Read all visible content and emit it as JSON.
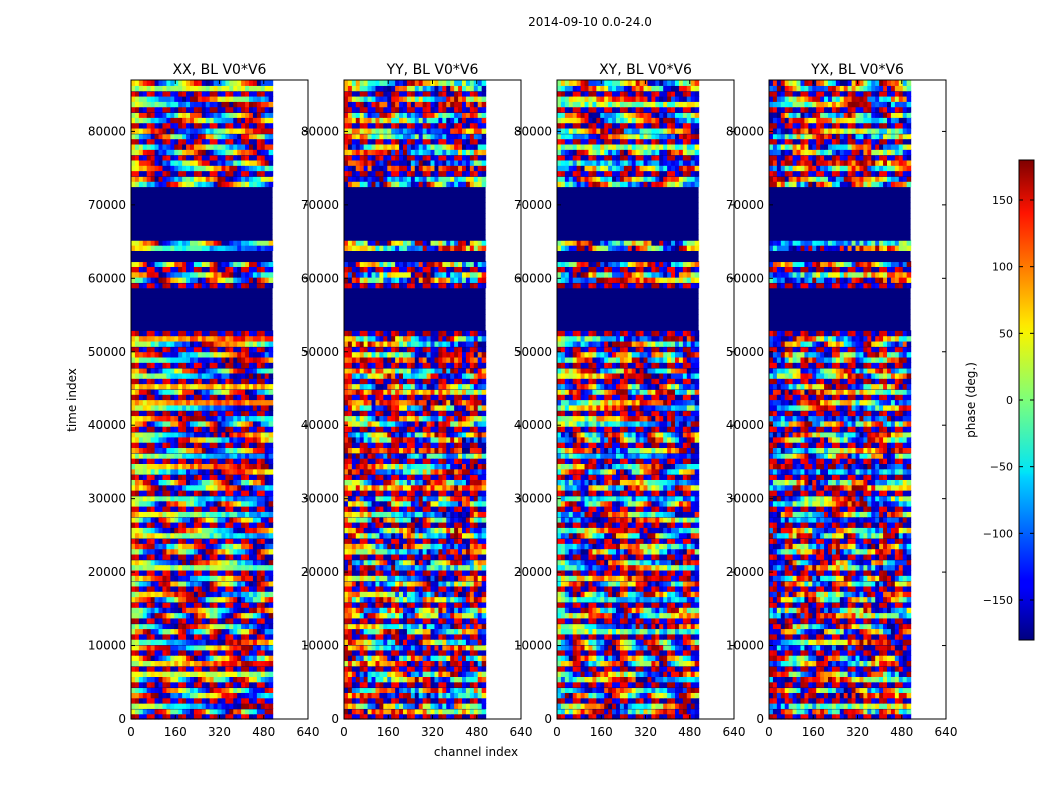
{
  "chart_data": {
    "type": "heatmap",
    "title": "2014-09-10 0.0-24.0",
    "xlabel": "channel index",
    "ylabel": "time index",
    "xlim": [
      0,
      640
    ],
    "ylim": [
      0,
      87000
    ],
    "xticks": [
      0,
      160,
      320,
      480,
      640
    ],
    "yticks": [
      0,
      10000,
      20000,
      30000,
      40000,
      50000,
      60000,
      70000,
      80000
    ],
    "data_extent_channels": 512,
    "panels": [
      {
        "title": "XX, BL V0*V6",
        "mean_phase": 40,
        "spread": 55
      },
      {
        "title": "YY, BL V0*V6",
        "mean_phase": 120,
        "spread": 120
      },
      {
        "title": "XY, BL V0*V6",
        "mean_phase": -20,
        "spread": 90
      },
      {
        "title": "YX, BL V0*V6",
        "mean_phase": -130,
        "spread": 110
      }
    ],
    "flagged_time_ranges": [
      [
        53000,
        58500
      ],
      [
        62500,
        64000
      ],
      [
        65000,
        72500
      ]
    ],
    "colorbar": {
      "label": "phase (deg.)",
      "range": [
        -180,
        180
      ],
      "ticks": [
        -150,
        -100,
        -50,
        0,
        50,
        100,
        150
      ],
      "tick_labels": [
        "−150",
        "−100",
        "−50",
        "0",
        "50",
        "100",
        "150"
      ],
      "colormap": "jet"
    }
  }
}
